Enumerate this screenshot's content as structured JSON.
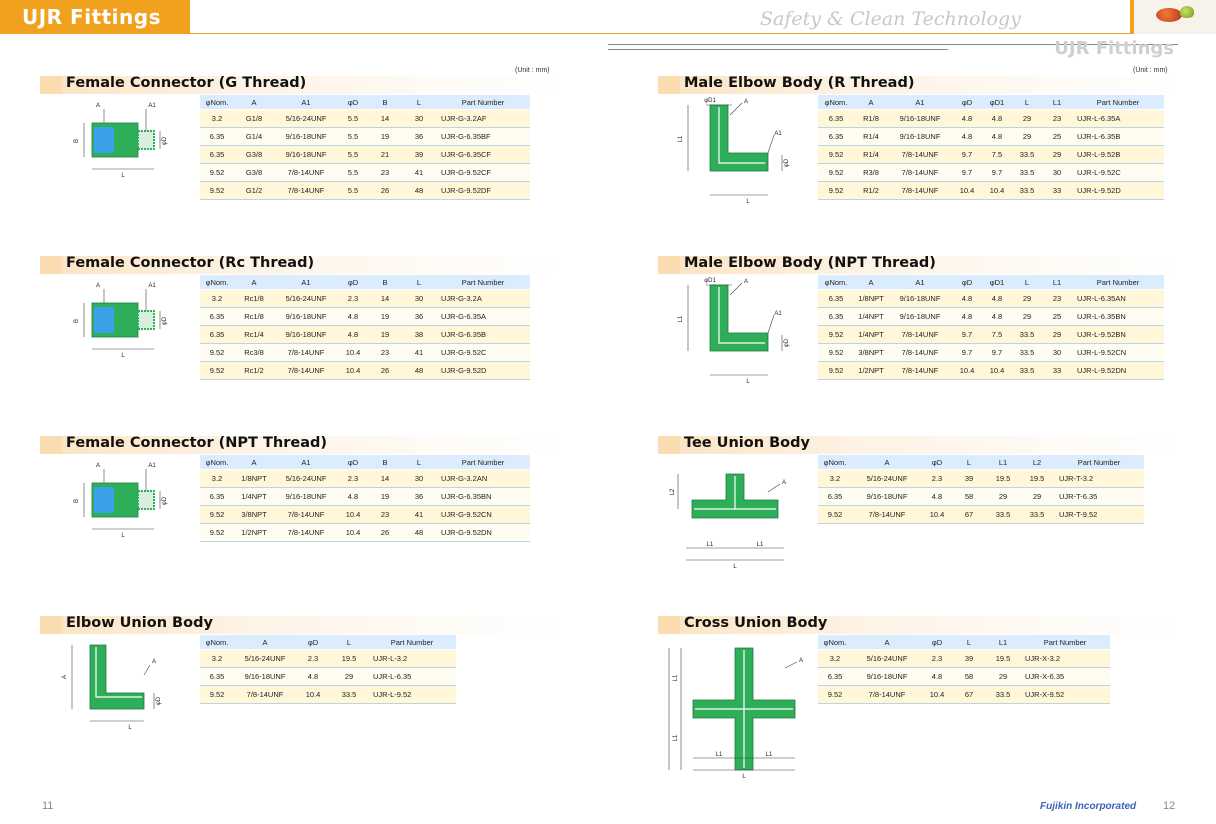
{
  "header": {
    "tab_title": "UJR Fittings",
    "tagline": "Safety & Clean Technology",
    "right_title": "UJR Fittings"
  },
  "unit_label": "(Unit : mm)",
  "footer": {
    "left_page": "11",
    "brand": "Fujikin Incorporated",
    "right_page": "12"
  },
  "colors": {
    "accent": "#f0a21e",
    "table_header": "#dcecff",
    "row_fill": "#fff7d8",
    "fitting_green": "#2fae5a",
    "fitting_blue": "#3aa0e8"
  },
  "sections": [
    {
      "title": "Female Connector (G Thread)",
      "columns": [
        "φNom.",
        "A",
        "A1",
        "φD",
        "B",
        "L",
        "Part Number"
      ],
      "rows": [
        [
          "3.2",
          "G1/8",
          "5/16-24UNF",
          "5.5",
          "14",
          "30",
          "UJR-G-3.2AF"
        ],
        [
          "6.35",
          "G1/4",
          "9/16-18UNF",
          "5.5",
          "19",
          "36",
          "UJR-G-6.35BF"
        ],
        [
          "6.35",
          "G3/8",
          "9/16-18UNF",
          "5.5",
          "21",
          "39",
          "UJR-G-6.35CF"
        ],
        [
          "9.52",
          "G3/8",
          "7/8-14UNF",
          "5.5",
          "23",
          "41",
          "UJR-G-9.52CF"
        ],
        [
          "9.52",
          "G1/2",
          "7/8-14UNF",
          "5.5",
          "26",
          "48",
          "UJR-G-9.52DF"
        ]
      ],
      "dims": [
        "A",
        "A1",
        "B",
        "φD",
        "L"
      ]
    },
    {
      "title": "Female Connector (Rc Thread)",
      "columns": [
        "φNom.",
        "A",
        "A1",
        "φD",
        "B",
        "L",
        "Part Number"
      ],
      "rows": [
        [
          "3.2",
          "Rc1/8",
          "5/16-24UNF",
          "2.3",
          "14",
          "30",
          "UJR-G-3.2A"
        ],
        [
          "6.35",
          "Rc1/8",
          "9/16-18UNF",
          "4.8",
          "19",
          "36",
          "UJR-G-6.35A"
        ],
        [
          "6.35",
          "Rc1/4",
          "9/16-18UNF",
          "4.8",
          "19",
          "38",
          "UJR-G-6.35B"
        ],
        [
          "9.52",
          "Rc3/8",
          "7/8-14UNF",
          "10.4",
          "23",
          "41",
          "UJR-G-9.52C"
        ],
        [
          "9.52",
          "Rc1/2",
          "7/8-14UNF",
          "10.4",
          "26",
          "48",
          "UJR-G-9.52D"
        ]
      ],
      "dims": [
        "A",
        "A1",
        "B",
        "φD",
        "L"
      ]
    },
    {
      "title": "Female Connector (NPT Thread)",
      "columns": [
        "φNom.",
        "A",
        "A1",
        "φD",
        "B",
        "L",
        "Part Number"
      ],
      "rows": [
        [
          "3.2",
          "1/8NPT",
          "5/16-24UNF",
          "2.3",
          "14",
          "30",
          "UJR-G-3.2AN"
        ],
        [
          "6.35",
          "1/4NPT",
          "9/16-18UNF",
          "4.8",
          "19",
          "36",
          "UJR-G-6.35BN"
        ],
        [
          "9.52",
          "3/8NPT",
          "7/8-14UNF",
          "10.4",
          "23",
          "41",
          "UJR-G-9.52CN"
        ],
        [
          "9.52",
          "1/2NPT",
          "7/8-14UNF",
          "10.4",
          "26",
          "48",
          "UJR-G-9.52DN"
        ]
      ],
      "dims": [
        "A",
        "A1",
        "B",
        "φD",
        "L"
      ]
    },
    {
      "title": "Elbow Union Body",
      "columns": [
        "φNom.",
        "A",
        "φD",
        "L",
        "Part Number"
      ],
      "rows": [
        [
          "3.2",
          "5/16-24UNF",
          "2.3",
          "19.5",
          "UJR-L-3.2"
        ],
        [
          "6.35",
          "9/16-18UNF",
          "4.8",
          "29",
          "UJR-L-6.35"
        ],
        [
          "9.52",
          "7/8-14UNF",
          "10.4",
          "33.5",
          "UJR-L-9.52"
        ]
      ],
      "dims": [
        "A",
        "L",
        "L",
        "φD"
      ]
    },
    {
      "title": "Male Elbow Body (R Thread)",
      "columns": [
        "φNom.",
        "A",
        "A1",
        "φD",
        "φD1",
        "L",
        "L1",
        "Part Number"
      ],
      "rows": [
        [
          "6.35",
          "R1/8",
          "9/16-18UNF",
          "4.8",
          "4.8",
          "29",
          "23",
          "UJR-L-6.35A"
        ],
        [
          "6.35",
          "R1/4",
          "9/16-18UNF",
          "4.8",
          "4.8",
          "29",
          "25",
          "UJR-L-6.35B"
        ],
        [
          "9.52",
          "R1/4",
          "7/8-14UNF",
          "9.7",
          "7.5",
          "33.5",
          "29",
          "UJR-L-9.52B"
        ],
        [
          "9.52",
          "R3/8",
          "7/8-14UNF",
          "9.7",
          "9.7",
          "33.5",
          "30",
          "UJR-L-9.52C"
        ],
        [
          "9.52",
          "R1/2",
          "7/8-14UNF",
          "10.4",
          "10.4",
          "33.5",
          "33",
          "UJR-L-9.52D"
        ]
      ],
      "dims": [
        "φD1",
        "A",
        "A1",
        "L1",
        "φD",
        "L"
      ]
    },
    {
      "title": "Male Elbow Body (NPT Thread)",
      "columns": [
        "φNom.",
        "A",
        "A1",
        "φD",
        "φD1",
        "L",
        "L1",
        "Part Number"
      ],
      "rows": [
        [
          "6.35",
          "1/8NPT",
          "9/16-18UNF",
          "4.8",
          "4.8",
          "29",
          "23",
          "UJR-L-6.35AN"
        ],
        [
          "6.35",
          "1/4NPT",
          "9/16-18UNF",
          "4.8",
          "4.8",
          "29",
          "25",
          "UJR-L-6.35BN"
        ],
        [
          "9.52",
          "1/4NPT",
          "7/8-14UNF",
          "9.7",
          "7.5",
          "33.5",
          "29",
          "UJR-L-9.52BN"
        ],
        [
          "9.52",
          "3/8NPT",
          "7/8-14UNF",
          "9.7",
          "9.7",
          "33.5",
          "30",
          "UJR-L-9.52CN"
        ],
        [
          "9.52",
          "1/2NPT",
          "7/8-14UNF",
          "10.4",
          "10.4",
          "33.5",
          "33",
          "UJR-L-9.52DN"
        ]
      ],
      "dims": [
        "φD1",
        "A",
        "A1",
        "L1",
        "φD",
        "L"
      ]
    },
    {
      "title": "Tee Union Body",
      "columns": [
        "φNom.",
        "A",
        "φD",
        "L",
        "L1",
        "L2",
        "Part Number"
      ],
      "rows": [
        [
          "3.2",
          "5/16-24UNF",
          "2.3",
          "39",
          "19.5",
          "19.5",
          "UJR-T-3.2"
        ],
        [
          "6.35",
          "9/16-18UNF",
          "4.8",
          "58",
          "29",
          "29",
          "UJR-T-6.35"
        ],
        [
          "9.52",
          "7/8-14UNF",
          "10.4",
          "67",
          "33.5",
          "33.5",
          "UJR-T-9.52"
        ]
      ],
      "dims": [
        "A",
        "L2",
        "L1",
        "L1",
        "L"
      ]
    },
    {
      "title": "Cross Union Body",
      "columns": [
        "φNom.",
        "A",
        "φD",
        "L",
        "L1",
        "Part Number"
      ],
      "rows": [
        [
          "3.2",
          "5/16-24UNF",
          "2.3",
          "39",
          "19.5",
          "UJR-X-3.2"
        ],
        [
          "6.35",
          "9/16-18UNF",
          "4.8",
          "58",
          "29",
          "UJR-X-6.35"
        ],
        [
          "9.52",
          "7/8-14UNF",
          "10.4",
          "67",
          "33.5",
          "UJR-X-9.52"
        ]
      ],
      "dims": [
        "A",
        "L1",
        "L1",
        "L",
        "L1",
        "L1",
        "L"
      ]
    }
  ]
}
